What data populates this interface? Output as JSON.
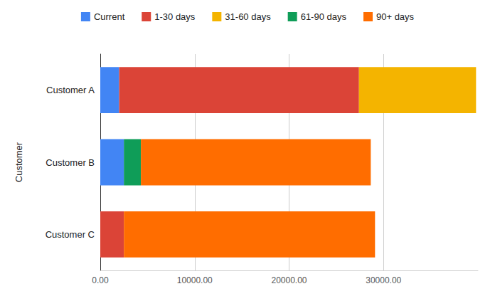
{
  "chart_data": {
    "type": "bar",
    "orientation": "horizontal",
    "stacked": true,
    "categories": [
      "Customer A",
      "Customer B",
      "Customer C"
    ],
    "y_label": "Customer",
    "series": [
      {
        "name": "Current",
        "color": "#4285f4",
        "values": [
          2000,
          2500,
          0
        ]
      },
      {
        "name": "1-30 days",
        "color": "#db4437",
        "values": [
          25400,
          0,
          2500
        ]
      },
      {
        "name": "31-60 days",
        "color": "#f4b400",
        "values": [
          12400,
          0,
          0
        ]
      },
      {
        "name": "61-90 days",
        "color": "#0f9d58",
        "values": [
          0,
          1800,
          0
        ]
      },
      {
        "name": "90+ days",
        "color": "#ff6d00",
        "values": [
          0,
          24350,
          26600
        ]
      }
    ],
    "xlim": [
      0,
      40000
    ],
    "xticks": [
      {
        "value": 0,
        "label": "0.00"
      },
      {
        "value": 10000,
        "label": "10000.00"
      },
      {
        "value": 20000,
        "label": "20000.00"
      },
      {
        "value": 30000,
        "label": "30000.00"
      }
    ],
    "grid": true,
    "legend": "top"
  }
}
